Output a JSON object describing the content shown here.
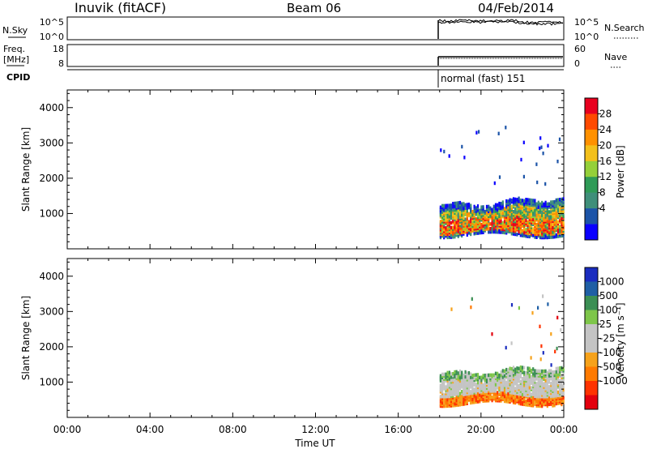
{
  "header": {
    "title": "Inuvik (fitACF)",
    "beam": "Beam 06",
    "date": "04/Feb/2014"
  },
  "status_panels": {
    "nsky_label": "N.Sky",
    "nsky_ticks": [
      "10^5",
      "10^0"
    ],
    "nsearch_label": "N.Search",
    "nsearch_ticks": [
      "10^5",
      "10^0"
    ],
    "freq_label_line1": "Freq.",
    "freq_label_line2": "[MHz]",
    "freq_ticks": [
      "18",
      "8"
    ],
    "nave_label": "Nave",
    "nave_ticks": [
      "60",
      "0"
    ],
    "cpid_label": "CPID",
    "cpid_value": "normal (fast) 151"
  },
  "power_colorbar": {
    "label": "Power [dB]",
    "ticks": [
      "28",
      "24",
      "20",
      "16",
      "12",
      "8",
      "4"
    ],
    "colors": [
      "#e8001f",
      "#ff4a00",
      "#ff9100",
      "#f3c01b",
      "#95d03a",
      "#2f9b57",
      "#3f8f7a",
      "#1c54a8",
      "#0a00ff"
    ]
  },
  "velocity_colorbar": {
    "label": "Velocity [m s⁻¹]",
    "ticks": [
      "1000",
      "500",
      "100",
      "25",
      "-25",
      "-100",
      "-500",
      "-1000"
    ],
    "colors": [
      "#1a2cbf",
      "#1f5fa5",
      "#3b8f54",
      "#7ec64a",
      "#c4c4c4",
      "#c4c4c4",
      "#f6a21b",
      "#ff7a00",
      "#ff3300",
      "#e3000e"
    ]
  },
  "chart_data": [
    {
      "type": "heatmap",
      "title": "",
      "xlabel": "",
      "ylabel": "Slant Range [km]",
      "x_ticks": [
        "00:00",
        "04:00",
        "08:00",
        "12:00",
        "16:00",
        "20:00",
        "00:00"
      ],
      "y_ticks": [
        "4000",
        "3000",
        "2000",
        "1000"
      ],
      "xlim_hours": [
        0,
        24
      ],
      "ylim_km": [
        0,
        4500
      ],
      "quantity": "Power",
      "regions": [
        {
          "t0": 18.0,
          "t1": 24.0,
          "r0": 500,
          "r1": 1300,
          "level": "mixed"
        },
        {
          "t0": 18.3,
          "t1": 19.5,
          "r0": 600,
          "r1": 1000,
          "level": "high"
        },
        {
          "t0": 21.0,
          "t1": 23.5,
          "r0": 600,
          "r1": 1100,
          "level": "high"
        }
      ]
    },
    {
      "type": "heatmap",
      "title": "",
      "xlabel": "Time UT",
      "ylabel": "Slant Range [km]",
      "x_ticks": [
        "00:00",
        "04:00",
        "08:00",
        "12:00",
        "16:00",
        "20:00",
        "00:00"
      ],
      "y_ticks": [
        "4000",
        "3000",
        "2000",
        "1000"
      ],
      "xlim_hours": [
        0,
        24
      ],
      "ylim_km": [
        0,
        4500
      ],
      "quantity": "Velocity",
      "regions": [
        {
          "t0": 18.0,
          "t1": 24.0,
          "r0": 500,
          "r1": 1400,
          "level": "mixed"
        }
      ]
    }
  ]
}
